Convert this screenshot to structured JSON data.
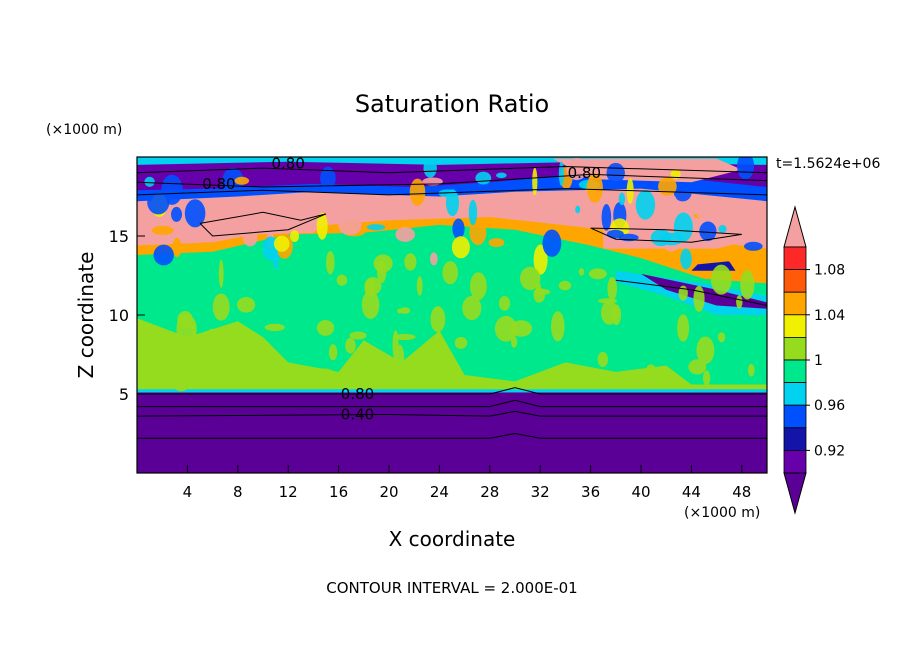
{
  "chart_data": {
    "type": "heatmap",
    "title": "Saturation Ratio",
    "xlabel": "X coordinate",
    "ylabel": "Z coordinate",
    "x_unit": "(×1000 m)",
    "y_unit": "(×1000 m)",
    "time_label": "t=1.5624e+06",
    "footer": "CONTOUR INTERVAL = 2.000E-01",
    "xlim": [
      0,
      50
    ],
    "ylim": [
      0,
      20
    ],
    "x_ticks": [
      4,
      8,
      12,
      16,
      20,
      24,
      28,
      32,
      36,
      40,
      44,
      48
    ],
    "y_ticks": [
      5,
      10,
      15
    ],
    "contour_labels": [
      {
        "text": "0.80",
        "x": 12,
        "z": 19.6
      },
      {
        "text": "0.80",
        "x": 6.5,
        "z": 18.3
      },
      {
        "text": "0.80",
        "x": 35.5,
        "z": 19.0
      },
      {
        "text": "0.80",
        "x": 17.5,
        "z": 5.0
      },
      {
        "text": "0.40",
        "x": 17.5,
        "z": 3.7
      }
    ],
    "colorbar": {
      "bins": [
        {
          "upper": 0.9,
          "color": "#5a0096"
        },
        {
          "upper": 0.92,
          "color": "#6600aa"
        },
        {
          "upper": 0.94,
          "color": "#1414a8"
        },
        {
          "upper": 0.96,
          "color": "#0050ff"
        },
        {
          "upper": 0.98,
          "color": "#00d2f0"
        },
        {
          "upper": 1.0,
          "color": "#00e88c"
        },
        {
          "upper": 1.02,
          "color": "#96dc1e"
        },
        {
          "upper": 1.04,
          "color": "#f0f000"
        },
        {
          "upper": 1.06,
          "color": "#ffa500"
        },
        {
          "upper": 1.08,
          "color": "#ff5a0a"
        },
        {
          "upper": 1.1,
          "color": "#ff2828"
        },
        {
          "upper": null,
          "color": "#f5a0a0"
        }
      ],
      "tick_labels": [
        "1.08",
        "1.04",
        "1",
        "0.96",
        "0.92"
      ]
    }
  }
}
